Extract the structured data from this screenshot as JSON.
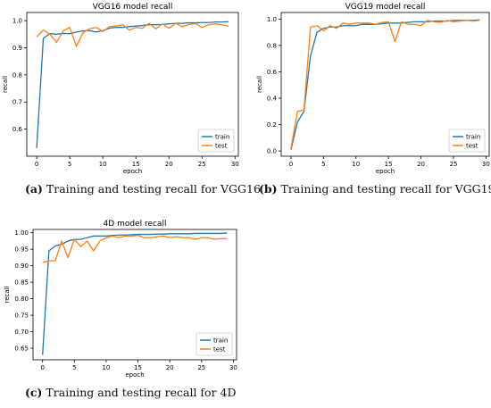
{
  "colors": {
    "train": "#1f77b4",
    "test": "#ff7f0e",
    "axis": "#000000",
    "background": "#ffffff"
  },
  "chart_data": [
    {
      "type": "line",
      "title": "VGG16 model recall",
      "xlabel": "epoch",
      "ylabel": "recall",
      "xlim": [
        -1.5,
        30.5
      ],
      "ylim": [
        0.5,
        1.03
      ],
      "x_ticks": [
        0,
        5,
        10,
        15,
        20,
        25,
        30
      ],
      "y_ticks": [
        0.6,
        0.7,
        0.8,
        0.9,
        1.0
      ],
      "y_tick_labels": [
        "0.6",
        "0.7",
        "0.8",
        "0.9",
        "1.0"
      ],
      "legend": {
        "location": "lower right",
        "entries": [
          "train",
          "test"
        ]
      },
      "grid": false,
      "series": [
        {
          "name": "train",
          "x": [
            0,
            1,
            2,
            3,
            4,
            5,
            6,
            7,
            8,
            9,
            10,
            11,
            12,
            13,
            14,
            15,
            16,
            17,
            18,
            19,
            20,
            21,
            22,
            23,
            24,
            25,
            26,
            27,
            28,
            29
          ],
          "values": [
            0.53,
            0.935,
            0.952,
            0.95,
            0.953,
            0.952,
            0.958,
            0.962,
            0.963,
            0.958,
            0.963,
            0.972,
            0.975,
            0.975,
            0.978,
            0.98,
            0.982,
            0.985,
            0.985,
            0.986,
            0.988,
            0.99,
            0.99,
            0.992,
            0.992,
            0.993,
            0.993,
            0.995,
            0.995,
            0.996
          ]
        },
        {
          "name": "test",
          "x": [
            0,
            1,
            2,
            3,
            4,
            5,
            6,
            7,
            8,
            9,
            10,
            11,
            12,
            13,
            14,
            15,
            16,
            17,
            18,
            19,
            20,
            21,
            22,
            23,
            24,
            25,
            26,
            27,
            28,
            29
          ],
          "values": [
            0.94,
            0.965,
            0.95,
            0.92,
            0.962,
            0.975,
            0.905,
            0.955,
            0.97,
            0.975,
            0.96,
            0.978,
            0.98,
            0.985,
            0.965,
            0.975,
            0.972,
            0.99,
            0.97,
            0.988,
            0.972,
            0.99,
            0.978,
            0.985,
            0.99,
            0.975,
            0.985,
            0.988,
            0.985,
            0.98
          ]
        }
      ]
    },
    {
      "type": "line",
      "title": "VGG19 model recall",
      "xlabel": "epoch",
      "ylabel": "recall",
      "xlim": [
        -1.5,
        30.5
      ],
      "ylim": [
        -0.04,
        1.05
      ],
      "x_ticks": [
        0,
        5,
        10,
        15,
        20,
        25,
        30
      ],
      "y_ticks": [
        0.0,
        0.2,
        0.4,
        0.6,
        0.8,
        1.0
      ],
      "y_tick_labels": [
        "0.0",
        "0.2",
        "0.4",
        "0.6",
        "0.8",
        "1.0"
      ],
      "legend": {
        "location": "lower right",
        "entries": [
          "train",
          "test"
        ]
      },
      "grid": false,
      "series": [
        {
          "name": "train",
          "x": [
            0,
            1,
            2,
            3,
            4,
            5,
            6,
            7,
            8,
            9,
            10,
            11,
            12,
            13,
            14,
            15,
            16,
            17,
            18,
            19,
            20,
            21,
            22,
            23,
            24,
            25,
            26,
            27,
            28,
            29
          ],
          "values": [
            0.01,
            0.22,
            0.3,
            0.72,
            0.9,
            0.93,
            0.94,
            0.94,
            0.95,
            0.95,
            0.95,
            0.96,
            0.96,
            0.96,
            0.965,
            0.97,
            0.97,
            0.97,
            0.975,
            0.98,
            0.98,
            0.98,
            0.985,
            0.985,
            0.985,
            0.99,
            0.99,
            0.99,
            0.99,
            0.995
          ]
        },
        {
          "name": "test",
          "x": [
            0,
            1,
            2,
            3,
            4,
            5,
            6,
            7,
            8,
            9,
            10,
            11,
            12,
            13,
            14,
            15,
            16,
            17,
            18,
            19,
            20,
            21,
            22,
            23,
            24,
            25,
            26,
            27,
            28,
            29
          ],
          "values": [
            0.02,
            0.3,
            0.31,
            0.94,
            0.95,
            0.91,
            0.95,
            0.93,
            0.97,
            0.96,
            0.97,
            0.97,
            0.97,
            0.96,
            0.975,
            0.98,
            0.83,
            0.98,
            0.96,
            0.96,
            0.95,
            0.99,
            0.98,
            0.975,
            0.99,
            0.98,
            0.985,
            0.99,
            0.985,
            0.99
          ]
        }
      ]
    },
    {
      "type": "line",
      "title": "4D model recall",
      "xlabel": "epoch",
      "ylabel": "recall",
      "xlim": [
        -1.5,
        30.5
      ],
      "ylim": [
        0.615,
        1.01
      ],
      "x_ticks": [
        0,
        5,
        10,
        15,
        20,
        25,
        30
      ],
      "y_ticks": [
        0.65,
        0.7,
        0.75,
        0.8,
        0.85,
        0.9,
        0.95,
        1.0
      ],
      "y_tick_labels": [
        "0.65",
        "0.70",
        "0.75",
        "0.80",
        "0.85",
        "0.90",
        "0.95",
        "1.00"
      ],
      "legend": {
        "location": "lower right",
        "entries": [
          "train",
          "test"
        ]
      },
      "grid": false,
      "series": [
        {
          "name": "train",
          "x": [
            0,
            1,
            2,
            3,
            4,
            5,
            6,
            7,
            8,
            9,
            10,
            11,
            12,
            13,
            14,
            15,
            16,
            17,
            18,
            19,
            20,
            21,
            22,
            23,
            24,
            25,
            26,
            27,
            28,
            29
          ],
          "values": [
            0.63,
            0.945,
            0.96,
            0.965,
            0.975,
            0.98,
            0.98,
            0.985,
            0.99,
            0.99,
            0.99,
            0.992,
            0.993,
            0.993,
            0.994,
            0.995,
            0.995,
            0.995,
            0.996,
            0.996,
            0.997,
            0.997,
            0.997,
            0.997,
            0.998,
            0.998,
            0.998,
            0.998,
            0.998,
            0.999
          ]
        },
        {
          "name": "test",
          "x": [
            0,
            1,
            2,
            3,
            4,
            5,
            6,
            7,
            8,
            9,
            10,
            11,
            12,
            13,
            14,
            15,
            16,
            17,
            18,
            19,
            20,
            21,
            22,
            23,
            24,
            25,
            26,
            27,
            28,
            29
          ],
          "values": [
            0.91,
            0.915,
            0.915,
            0.975,
            0.925,
            0.98,
            0.958,
            0.975,
            0.945,
            0.975,
            0.985,
            0.99,
            0.985,
            0.99,
            0.99,
            0.992,
            0.985,
            0.985,
            0.988,
            0.99,
            0.985,
            0.988,
            0.985,
            0.985,
            0.98,
            0.985,
            0.985,
            0.98,
            0.982,
            0.982
          ]
        }
      ]
    }
  ],
  "captions": [
    {
      "label": "(a)",
      "text": " Training and testing recall for VGG16"
    },
    {
      "label": "(b)",
      "text": " Training and testing recall for VGG19"
    },
    {
      "label": "(c)",
      "text": " Training and testing recall for 4D"
    }
  ]
}
